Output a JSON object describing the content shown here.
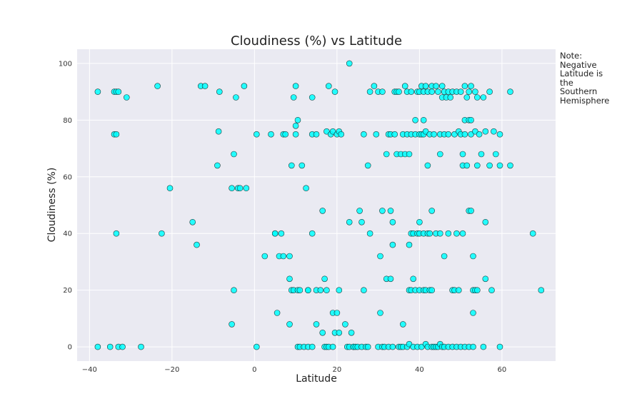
{
  "chart_data": {
    "type": "scatter",
    "title": "Cloudiness (%) vs Latitude",
    "xlabel": "Latitude",
    "ylabel": "Cloudiness (%)",
    "xlim": [
      -43,
      73
    ],
    "ylim": [
      -5,
      105
    ],
    "xticks": [
      -40,
      -20,
      0,
      20,
      40,
      60
    ],
    "yticks": [
      0,
      20,
      40,
      60,
      80,
      100
    ],
    "grid": true,
    "marker_color": "#00ffff",
    "marker_edge": "#1a3a3a",
    "background": "#eaeaf2",
    "points": [
      [
        -38,
        90
      ],
      [
        -38,
        0
      ],
      [
        -35,
        0
      ],
      [
        -34,
        75
      ],
      [
        -34,
        90
      ],
      [
        -33.5,
        90
      ],
      [
        -33.5,
        75
      ],
      [
        -33.5,
        40
      ],
      [
        -33,
        0
      ],
      [
        -33,
        90
      ],
      [
        -32,
        0
      ],
      [
        -31,
        88
      ],
      [
        -27.5,
        0
      ],
      [
        -23.5,
        92
      ],
      [
        -22.5,
        40
      ],
      [
        -20.5,
        56
      ],
      [
        -15,
        44
      ],
      [
        -14,
        36
      ],
      [
        -13,
        92
      ],
      [
        -12,
        92
      ],
      [
        -8.5,
        90
      ],
      [
        -8.7,
        76
      ],
      [
        -9,
        64
      ],
      [
        -5.5,
        56
      ],
      [
        -5,
        68
      ],
      [
        -5,
        20
      ],
      [
        -5.5,
        8
      ],
      [
        -4.5,
        88
      ],
      [
        -4,
        56
      ],
      [
        -3.5,
        56
      ],
      [
        -2.5,
        92
      ],
      [
        -2,
        56
      ],
      [
        0.5,
        75
      ],
      [
        0.5,
        0
      ],
      [
        2.5,
        32
      ],
      [
        4,
        75
      ],
      [
        5,
        40
      ],
      [
        5.5,
        12
      ],
      [
        5,
        40
      ],
      [
        6,
        32
      ],
      [
        6.5,
        40
      ],
      [
        7,
        32
      ],
      [
        7,
        75
      ],
      [
        7.5,
        75
      ],
      [
        8.5,
        8
      ],
      [
        8.5,
        32
      ],
      [
        8.5,
        24
      ],
      [
        9,
        20
      ],
      [
        9,
        64
      ],
      [
        9.5,
        20
      ],
      [
        9.5,
        88
      ],
      [
        10,
        92
      ],
      [
        10,
        78
      ],
      [
        10,
        75
      ],
      [
        10.5,
        80
      ],
      [
        10.5,
        20
      ],
      [
        10.5,
        0
      ],
      [
        11,
        0
      ],
      [
        11,
        20
      ],
      [
        11.5,
        64
      ],
      [
        12,
        0
      ],
      [
        12.5,
        56
      ],
      [
        13,
        0
      ],
      [
        13,
        20
      ],
      [
        13,
        20
      ],
      [
        14,
        88
      ],
      [
        14,
        40
      ],
      [
        14,
        75
      ],
      [
        14,
        0
      ],
      [
        15,
        75
      ],
      [
        15,
        8
      ],
      [
        15,
        20
      ],
      [
        16,
        20
      ],
      [
        16.5,
        48
      ],
      [
        16.5,
        5
      ],
      [
        17,
        0
      ],
      [
        17,
        24
      ],
      [
        17.5,
        76
      ],
      [
        17.5,
        20
      ],
      [
        17.5,
        0
      ],
      [
        18,
        92
      ],
      [
        18,
        0
      ],
      [
        18.5,
        75
      ],
      [
        19,
        12
      ],
      [
        19,
        76
      ],
      [
        19,
        0
      ],
      [
        19.5,
        90
      ],
      [
        19.5,
        5
      ],
      [
        20,
        12
      ],
      [
        20,
        75
      ],
      [
        20.5,
        76
      ],
      [
        20.5,
        5
      ],
      [
        20.5,
        20
      ],
      [
        21,
        75
      ],
      [
        22,
        8
      ],
      [
        22.5,
        0
      ],
      [
        23,
        100
      ],
      [
        23,
        44
      ],
      [
        23,
        0
      ],
      [
        23.5,
        5
      ],
      [
        24,
        0
      ],
      [
        24,
        0
      ],
      [
        24.5,
        0
      ],
      [
        25,
        0
      ],
      [
        25.5,
        48
      ],
      [
        26,
        44
      ],
      [
        26,
        0
      ],
      [
        26.5,
        75
      ],
      [
        26.5,
        20
      ],
      [
        27,
        0
      ],
      [
        27.5,
        0
      ],
      [
        27.5,
        64
      ],
      [
        28,
        40
      ],
      [
        28,
        90
      ],
      [
        29,
        92
      ],
      [
        29.5,
        75
      ],
      [
        30,
        0
      ],
      [
        30,
        90
      ],
      [
        30.5,
        32
      ],
      [
        30.5,
        12
      ],
      [
        31,
        48
      ],
      [
        31,
        0
      ],
      [
        31,
        90
      ],
      [
        31.5,
        0
      ],
      [
        32,
        68
      ],
      [
        32,
        24
      ],
      [
        32.5,
        0
      ],
      [
        32.5,
        75
      ],
      [
        33,
        24
      ],
      [
        33,
        48
      ],
      [
        33,
        75
      ],
      [
        33.5,
        36
      ],
      [
        33.5,
        44
      ],
      [
        33.5,
        0
      ],
      [
        34,
        75
      ],
      [
        34,
        90
      ],
      [
        34.5,
        90
      ],
      [
        34.5,
        68
      ],
      [
        35,
        90
      ],
      [
        35,
        0
      ],
      [
        35.5,
        68
      ],
      [
        35.5,
        0
      ],
      [
        36,
        75
      ],
      [
        36,
        8
      ],
      [
        36,
        0
      ],
      [
        36.5,
        68
      ],
      [
        36.5,
        92
      ],
      [
        37,
        90
      ],
      [
        37,
        75
      ],
      [
        37,
        0
      ],
      [
        37.5,
        68
      ],
      [
        37.5,
        36
      ],
      [
        37.5,
        20
      ],
      [
        37.5,
        1
      ],
      [
        38,
        75
      ],
      [
        38,
        40
      ],
      [
        38,
        20
      ],
      [
        38,
        90
      ],
      [
        38.5,
        24
      ],
      [
        38.5,
        40
      ],
      [
        38.5,
        0
      ],
      [
        39,
        75
      ],
      [
        39,
        80
      ],
      [
        39,
        20
      ],
      [
        39.5,
        40
      ],
      [
        39.5,
        90
      ],
      [
        39.5,
        0
      ],
      [
        40,
        75
      ],
      [
        40,
        90
      ],
      [
        40,
        20
      ],
      [
        40,
        40
      ],
      [
        40,
        44
      ],
      [
        40.5,
        92
      ],
      [
        40.5,
        75
      ],
      [
        40.5,
        0
      ],
      [
        41,
        80
      ],
      [
        41,
        40
      ],
      [
        41,
        90
      ],
      [
        41,
        75
      ],
      [
        41,
        20
      ],
      [
        41.5,
        92
      ],
      [
        41.5,
        76
      ],
      [
        41.5,
        20
      ],
      [
        41.5,
        1
      ],
      [
        42,
        64
      ],
      [
        42,
        40
      ],
      [
        42,
        90
      ],
      [
        42,
        0
      ],
      [
        42.5,
        20
      ],
      [
        42.5,
        75
      ],
      [
        42.5,
        40
      ],
      [
        43,
        92
      ],
      [
        43,
        48
      ],
      [
        43,
        90
      ],
      [
        43,
        0
      ],
      [
        43,
        20
      ],
      [
        43.5,
        75
      ],
      [
        43.5,
        0
      ],
      [
        44,
        40
      ],
      [
        44,
        92
      ],
      [
        44,
        0
      ],
      [
        44.5,
        90
      ],
      [
        44.5,
        0
      ],
      [
        45,
        75
      ],
      [
        45,
        68
      ],
      [
        45,
        40
      ],
      [
        45,
        1
      ],
      [
        45.5,
        92
      ],
      [
        45.5,
        88
      ],
      [
        45.5,
        0
      ],
      [
        46,
        90
      ],
      [
        46,
        75
      ],
      [
        46,
        32
      ],
      [
        46,
        0
      ],
      [
        46.5,
        88
      ],
      [
        47,
        90
      ],
      [
        47,
        75
      ],
      [
        47,
        40
      ],
      [
        47,
        0
      ],
      [
        47.5,
        88
      ],
      [
        48,
        90
      ],
      [
        48,
        20
      ],
      [
        48,
        0
      ],
      [
        48.5,
        75
      ],
      [
        48.5,
        20
      ],
      [
        49,
        40
      ],
      [
        49,
        90
      ],
      [
        49,
        0
      ],
      [
        49.5,
        76
      ],
      [
        49.5,
        20
      ],
      [
        50,
        75
      ],
      [
        50,
        90
      ],
      [
        50,
        0
      ],
      [
        50.5,
        40
      ],
      [
        50.5,
        68
      ],
      [
        50.5,
        64
      ],
      [
        51,
        92
      ],
      [
        51,
        80
      ],
      [
        51,
        0
      ],
      [
        51,
        75
      ],
      [
        51.5,
        64
      ],
      [
        51.5,
        88
      ],
      [
        52,
        48
      ],
      [
        52,
        90
      ],
      [
        52,
        80
      ],
      [
        52,
        0
      ],
      [
        52.5,
        92
      ],
      [
        52.5,
        48
      ],
      [
        52.5,
        75
      ],
      [
        52.5,
        80
      ],
      [
        53,
        12
      ],
      [
        53,
        32
      ],
      [
        53,
        0
      ],
      [
        53,
        20
      ],
      [
        53.5,
        76
      ],
      [
        53.5,
        90
      ],
      [
        53.5,
        20
      ],
      [
        54,
        64
      ],
      [
        54,
        88
      ],
      [
        54,
        20
      ],
      [
        54.5,
        75
      ],
      [
        55,
        68
      ],
      [
        55.5,
        88
      ],
      [
        55.5,
        0
      ],
      [
        56,
        44
      ],
      [
        56,
        76
      ],
      [
        56,
        24
      ],
      [
        57,
        90
      ],
      [
        57,
        64
      ],
      [
        57.5,
        20
      ],
      [
        58,
        76
      ],
      [
        58.5,
        68
      ],
      [
        59.5,
        0
      ],
      [
        59.5,
        64
      ],
      [
        59.5,
        75
      ],
      [
        62,
        90
      ],
      [
        62,
        64
      ],
      [
        67.5,
        40
      ],
      [
        69.5,
        20
      ]
    ]
  },
  "note": {
    "lines": [
      "Note:",
      "Negative",
      "Latitude is the",
      "Southern",
      "Hemisphere"
    ]
  }
}
